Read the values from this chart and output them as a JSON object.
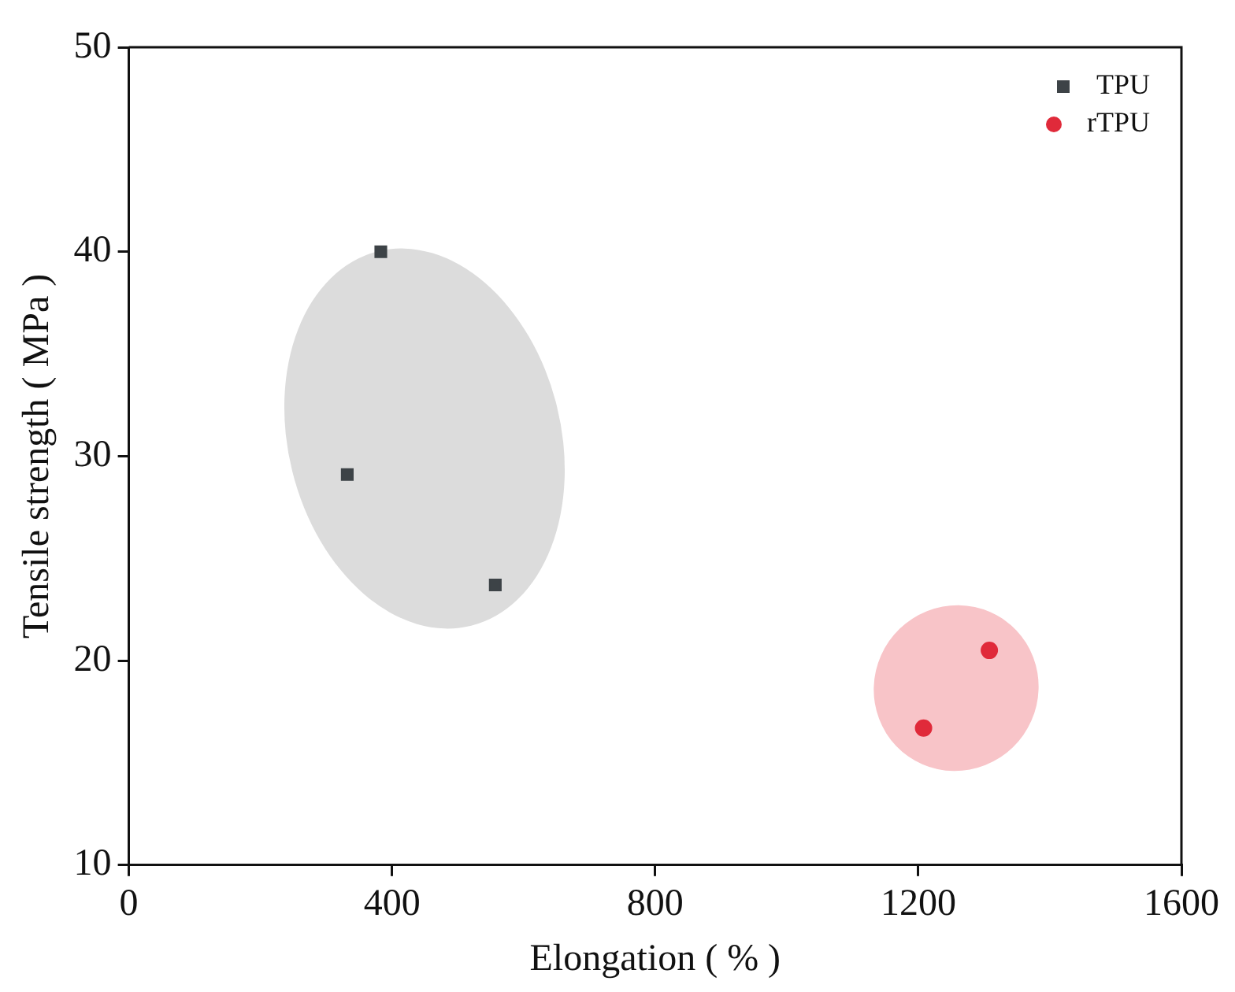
{
  "chart_data": {
    "type": "scatter",
    "xlabel": "Elongation ( % )",
    "ylabel": "Tensile strength ( MPa )",
    "xlim": [
      0,
      1600
    ],
    "xticks": [
      0,
      400,
      800,
      1200,
      1600
    ],
    "ylim": [
      10,
      50
    ],
    "yticks": [
      10,
      20,
      30,
      40,
      50
    ],
    "grid": false,
    "legend": "top right",
    "series": [
      {
        "name": "TPU",
        "color": "#3d4347",
        "marker": "square",
        "x": [
          383,
          332,
          557
        ],
        "values": [
          40,
          29.1,
          23.7
        ]
      },
      {
        "name": "rTPU",
        "color": "#e02a3a",
        "marker": "circle",
        "x": [
          1308,
          1208
        ],
        "values": [
          20.5,
          16.7
        ]
      }
    ]
  }
}
